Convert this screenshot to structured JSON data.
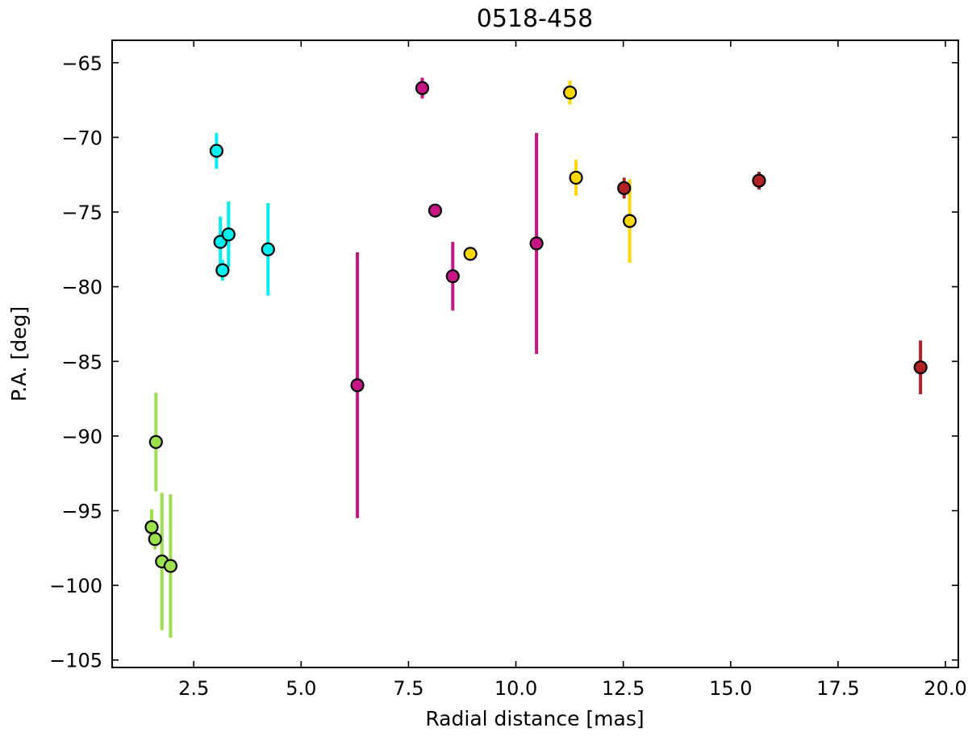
{
  "chart_data": {
    "type": "scatter",
    "title": "0518-458",
    "xlabel": "Radial distance [mas]",
    "ylabel": "P.A. [deg]",
    "xlim": [
      0.6,
      20.3
    ],
    "ylim": [
      -105.5,
      -63.5
    ],
    "xticks": [
      2.5,
      5.0,
      7.5,
      10.0,
      12.5,
      15.0,
      17.5,
      20.0
    ],
    "xtick_labels": [
      "2.5",
      "5.0",
      "7.5",
      "10.0",
      "12.5",
      "15.0",
      "17.5",
      "20.0"
    ],
    "yticks": [
      -65,
      -70,
      -75,
      -80,
      -85,
      -90,
      -95,
      -100,
      -105
    ],
    "ytick_labels": [
      "−65",
      "−70",
      "−75",
      "−80",
      "−85",
      "−90",
      "−95",
      "−100",
      "−105"
    ],
    "grid": false,
    "marker_edge_color": "#000000",
    "series": [
      {
        "color": "#9de04e",
        "points": [
          {
            "x": 1.62,
            "y": -90.4,
            "err": 3.3
          },
          {
            "x": 1.52,
            "y": -96.1,
            "err": 1.2
          },
          {
            "x": 1.6,
            "y": -96.9,
            "err": 0.7
          },
          {
            "x": 1.76,
            "y": -98.4,
            "err": 4.6
          },
          {
            "x": 1.96,
            "y": -98.7,
            "err": 4.8
          }
        ]
      },
      {
        "color": "#00f0f0",
        "points": [
          {
            "x": 3.03,
            "y": -70.9,
            "err": 1.2
          },
          {
            "x": 3.12,
            "y": -77.0,
            "err": 1.7
          },
          {
            "x": 3.17,
            "y": -78.9,
            "err": 0.7
          },
          {
            "x": 3.31,
            "y": -76.5,
            "err": 2.2
          },
          {
            "x": 4.23,
            "y": -77.5,
            "err": 3.1
          }
        ]
      },
      {
        "color": "#c71585",
        "points": [
          {
            "x": 6.31,
            "y": -86.6,
            "err": 8.9
          },
          {
            "x": 7.82,
            "y": -66.7,
            "err": 0.7
          },
          {
            "x": 8.12,
            "y": -74.9,
            "err": 0.3
          },
          {
            "x": 8.53,
            "y": -79.3,
            "err": 2.3
          },
          {
            "x": 10.48,
            "y": -77.1,
            "err": 7.4
          }
        ]
      },
      {
        "color": "#ffd700",
        "points": [
          {
            "x": 8.94,
            "y": -77.8,
            "err": 0.3
          },
          {
            "x": 11.26,
            "y": -67.0,
            "err": 0.8
          },
          {
            "x": 11.4,
            "y": -72.7,
            "err": 1.2
          },
          {
            "x": 12.65,
            "y": -75.6,
            "err": 2.8
          }
        ]
      },
      {
        "color": "#b22222",
        "points": [
          {
            "x": 12.52,
            "y": -73.4,
            "err": 0.7
          },
          {
            "x": 15.66,
            "y": -72.9,
            "err": 0.6
          },
          {
            "x": 19.42,
            "y": -85.4,
            "err": 1.8
          }
        ]
      }
    ]
  }
}
